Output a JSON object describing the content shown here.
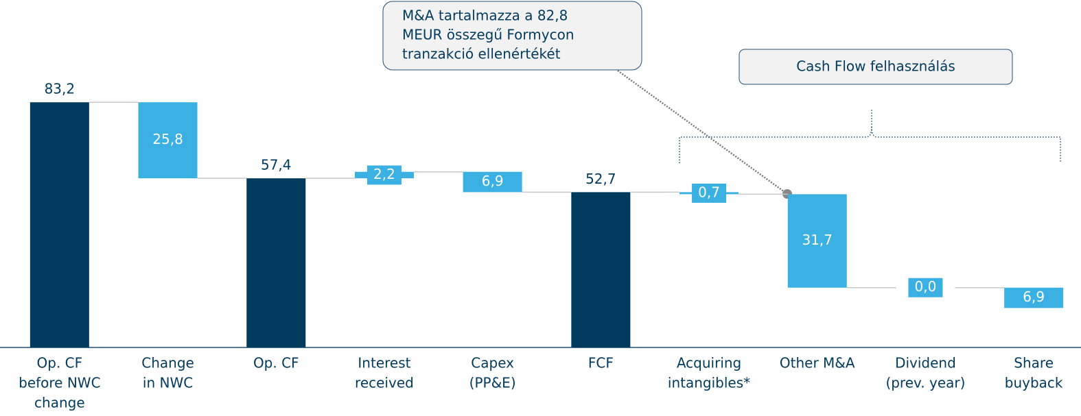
{
  "chart_data": {
    "type": "waterfall",
    "categories": [
      [
        "Op. CF",
        "before NWC",
        "change"
      ],
      [
        "Change",
        "in NWC"
      ],
      [
        "Op. CF"
      ],
      [
        "Interest",
        "received"
      ],
      [
        "Capex",
        "(PP&E)"
      ],
      [
        "FCF"
      ],
      [
        "Acquiring",
        "intangibles*"
      ],
      [
        "Other M&A"
      ],
      [
        "Dividend",
        "(prev. year)"
      ],
      [
        "Share",
        "buyback"
      ]
    ],
    "values": [
      83.2,
      -25.8,
      57.4,
      2.2,
      -6.9,
      52.7,
      -0.7,
      -31.7,
      0.0,
      -6.9
    ],
    "value_labels": [
      "83,2",
      "25,8",
      "57,4",
      "2,2",
      "6,9",
      "52,7",
      "0,7",
      "31,7",
      "0,0",
      "6,9"
    ],
    "measures": [
      "absolute",
      "relative",
      "absolute",
      "relative",
      "relative",
      "absolute",
      "relative",
      "relative",
      "relative",
      "relative"
    ],
    "total_color": "#003a5d",
    "change_color": "#3bb0e3",
    "ylim": [
      0,
      100
    ],
    "annotations": [
      {
        "lines": [
          "M&A tartalmazza a 82,8",
          "MEUR összegű Formycon",
          "tranzakció ellenértékét"
        ]
      },
      {
        "lines": [
          "Cash Flow felhasználás"
        ]
      }
    ]
  }
}
